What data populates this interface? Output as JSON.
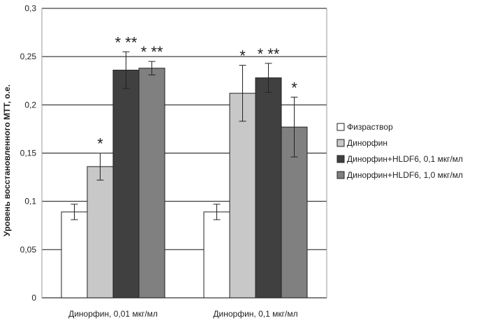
{
  "chart_data": {
    "type": "bar",
    "title": "",
    "xlabel": "",
    "ylabel": "Уровень восстановленного МТТ, о.е.",
    "ylim": [
      0,
      0.3
    ],
    "yticks": [
      "0",
      "0,05",
      "0,1",
      "0,15",
      "0,2",
      "0,25",
      "0,3"
    ],
    "ytick_values": [
      0,
      0.05,
      0.1,
      0.15,
      0.2,
      0.25,
      0.3
    ],
    "grid": "horizontal",
    "legend_position": "right",
    "categories": [
      "Динорфин, 0,01 мкг/мл",
      "Динорфин, 0,1 мкг/мл"
    ],
    "series": [
      {
        "name": "Физраствор",
        "color": "#ffffff",
        "values": [
          0.089,
          0.089
        ],
        "errors": [
          0.008,
          0.008
        ],
        "annotations": [
          "",
          ""
        ]
      },
      {
        "name": "Динорфин",
        "color": "#c8c8c8",
        "values": [
          0.136,
          0.212
        ],
        "errors": [
          0.014,
          0.029
        ],
        "annotations": [
          "*",
          "*"
        ]
      },
      {
        "name": "Динорфин+HLDF6, 0,1 мкг/мл",
        "color": "#404040",
        "values": [
          0.236,
          0.228
        ],
        "errors": [
          0.019,
          0.015
        ],
        "annotations": [
          "* **",
          "* **"
        ]
      },
      {
        "name": "Динорфин+HLDF6, 1,0 мкг/мл",
        "color": "#808080",
        "values": [
          0.238,
          0.177
        ],
        "errors": [
          0.007,
          0.031
        ],
        "annotations": [
          "* **",
          "*"
        ]
      }
    ]
  }
}
